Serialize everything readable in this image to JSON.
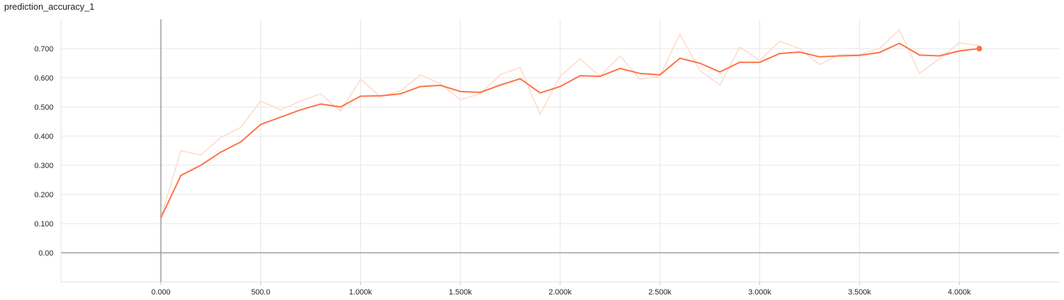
{
  "card": {
    "title": "prediction_accuracy_1"
  },
  "chart_data": {
    "type": "line",
    "title": "prediction_accuracy_1",
    "xlabel": "",
    "ylabel": "",
    "xlim": [
      -500,
      4500
    ],
    "ylim": [
      -0.1,
      0.8
    ],
    "grid": true,
    "x_ticks": [
      0,
      500,
      1000,
      1500,
      2000,
      2500,
      3000,
      3500,
      4000
    ],
    "x_tick_labels": [
      "0.000",
      "500.0",
      "1.000k",
      "1.500k",
      "2.000k",
      "2.500k",
      "3.000k",
      "3.500k",
      "4.000k"
    ],
    "y_ticks": [
      0.0,
      0.1,
      0.2,
      0.3,
      0.4,
      0.5,
      0.6,
      0.7
    ],
    "y_tick_labels": [
      "0.00",
      "0.100",
      "0.200",
      "0.300",
      "0.400",
      "0.500",
      "0.600",
      "0.700"
    ],
    "series": [
      {
        "role": "raw",
        "color": "#ffdbcc",
        "x": [
          0,
          100,
          200,
          300,
          400,
          500,
          600,
          700,
          800,
          900,
          1000,
          1100,
          1200,
          1300,
          1400,
          1500,
          1600,
          1700,
          1800,
          1900,
          2000,
          2100,
          2200,
          2300,
          2400,
          2500,
          2600,
          2700,
          2800,
          2900,
          3000,
          3100,
          3200,
          3300,
          3400,
          3500,
          3600,
          3700,
          3800,
          3900,
          4000,
          4100
        ],
        "values": [
          0.12,
          0.35,
          0.335,
          0.395,
          0.43,
          0.52,
          0.49,
          0.52,
          0.545,
          0.485,
          0.595,
          0.535,
          0.555,
          0.61,
          0.58,
          0.525,
          0.545,
          0.61,
          0.635,
          0.475,
          0.605,
          0.665,
          0.605,
          0.675,
          0.595,
          0.605,
          0.75,
          0.625,
          0.575,
          0.705,
          0.66,
          0.725,
          0.7,
          0.645,
          0.68,
          0.68,
          0.7,
          0.765,
          0.615,
          0.665,
          0.72,
          0.71
        ]
      },
      {
        "role": "smoothed",
        "color": "#ff7043",
        "x": [
          0,
          100,
          200,
          300,
          400,
          500,
          600,
          700,
          800,
          900,
          1000,
          1100,
          1200,
          1300,
          1400,
          1500,
          1600,
          1700,
          1800,
          1900,
          2000,
          2100,
          2200,
          2300,
          2400,
          2500,
          2600,
          2700,
          2800,
          2900,
          3000,
          3100,
          3200,
          3300,
          3400,
          3500,
          3600,
          3700,
          3800,
          3900,
          4000,
          4100
        ],
        "values": [
          0.12,
          0.265,
          0.3,
          0.345,
          0.38,
          0.44,
          0.465,
          0.49,
          0.51,
          0.5,
          0.537,
          0.538,
          0.545,
          0.57,
          0.574,
          0.553,
          0.55,
          0.575,
          0.597,
          0.548,
          0.57,
          0.607,
          0.605,
          0.632,
          0.615,
          0.61,
          0.667,
          0.65,
          0.62,
          0.653,
          0.653,
          0.683,
          0.688,
          0.672,
          0.675,
          0.677,
          0.687,
          0.718,
          0.678,
          0.675,
          0.692,
          0.7
        ]
      }
    ],
    "last_point_marker": {
      "x": 4100,
      "value": 0.7,
      "color": "#ff7043"
    }
  }
}
